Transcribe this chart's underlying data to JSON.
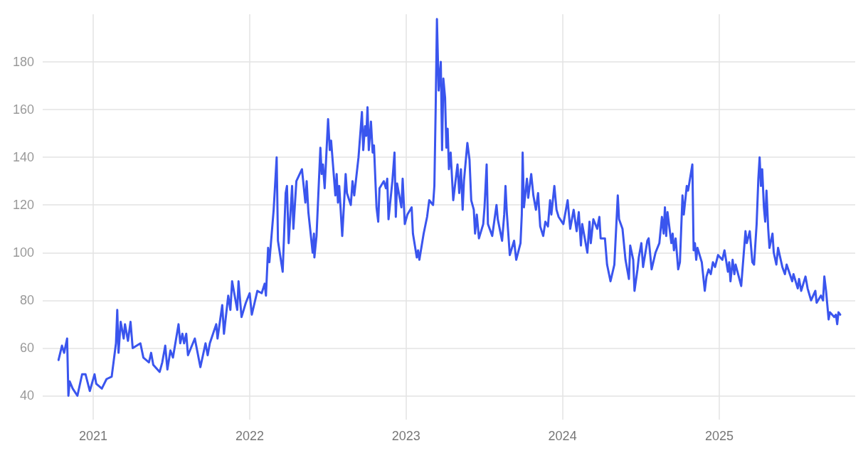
{
  "chart_data": {
    "type": "line",
    "xlim": [
      "2020-09-05",
      "2025-11-14"
    ],
    "xticks": [
      "2021",
      "2022",
      "2023",
      "2024",
      "2025"
    ],
    "ylim": [
      30,
      200
    ],
    "yticks": [
      40,
      60,
      80,
      100,
      120,
      140,
      160,
      180
    ],
    "grid": true,
    "marker": "none",
    "line_style": "solid",
    "series": [
      {
        "color": "#3a55ee",
        "x": [
          "2020-10-12",
          "2020-10-20",
          "2020-10-25",
          "2020-11-01",
          "2020-11-04",
          "2020-11-07",
          "2020-11-14",
          "2020-11-25",
          "2020-12-06",
          "2020-12-14",
          "2020-12-24",
          "2021-01-04",
          "2021-01-08",
          "2021-01-21",
          "2021-02-01",
          "2021-02-13",
          "2021-02-23",
          "2021-02-26",
          "2021-03-01",
          "2021-03-06",
          "2021-03-13",
          "2021-03-16",
          "2021-03-23",
          "2021-03-29",
          "2021-04-03",
          "2021-04-21",
          "2021-04-28",
          "2021-05-11",
          "2021-05-16",
          "2021-05-21",
          "2021-06-05",
          "2021-06-11",
          "2021-06-18",
          "2021-06-23",
          "2021-06-30",
          "2021-07-06",
          "2021-07-19",
          "2021-07-23",
          "2021-07-28",
          "2021-08-01",
          "2021-08-06",
          "2021-08-10",
          "2021-08-26",
          "2021-09-08",
          "2021-09-20",
          "2021-09-25",
          "2021-09-30",
          "2021-10-15",
          "2021-10-18",
          "2021-10-29",
          "2021-11-02",
          "2021-11-12",
          "2021-11-17",
          "2021-11-21",
          "2021-12-03",
          "2021-12-06",
          "2021-12-13",
          "2021-12-23",
          "2022-01-01",
          "2022-01-06",
          "2022-01-19",
          "2022-01-29",
          "2022-02-05",
          "2022-02-08",
          "2022-02-13",
          "2022-02-16",
          "2022-02-26",
          "2022-03-05",
          "2022-03-08",
          "2022-03-19",
          "2022-03-26",
          "2022-03-29",
          "2022-04-02",
          "2022-04-10",
          "2022-04-13",
          "2022-04-20",
          "2022-05-03",
          "2022-05-11",
          "2022-05-14",
          "2022-05-18",
          "2022-05-28",
          "2022-05-31",
          "2022-06-01",
          "2022-06-06",
          "2022-06-15",
          "2022-06-18",
          "2022-06-21",
          "2022-06-25",
          "2022-07-03",
          "2022-07-07",
          "2022-07-10",
          "2022-07-20",
          "2022-07-23",
          "2022-07-26",
          "2022-07-29",
          "2022-08-05",
          "2022-08-13",
          "2022-08-16",
          "2022-08-25",
          "2022-08-29",
          "2022-09-02",
          "2022-09-12",
          "2022-09-20",
          "2022-09-23",
          "2022-09-27",
          "2022-09-30",
          "2022-10-03",
          "2022-10-06",
          "2022-10-11",
          "2022-10-15",
          "2022-10-18",
          "2022-10-24",
          "2022-10-28",
          "2022-10-31",
          "2022-11-10",
          "2022-11-15",
          "2022-11-18",
          "2022-11-21",
          "2022-11-30",
          "2022-12-05",
          "2022-12-08",
          "2022-12-11",
          "2022-12-21",
          "2022-12-24",
          "2022-12-29",
          "2023-01-04",
          "2023-01-14",
          "2023-01-17",
          "2023-01-26",
          "2023-01-29",
          "2023-02-01",
          "2023-02-11",
          "2023-02-19",
          "2023-02-24",
          "2023-03-05",
          "2023-03-08",
          "2023-03-11",
          "2023-03-14",
          "2023-03-18",
          "2023-03-23",
          "2023-03-26",
          "2023-03-29",
          "2023-04-02",
          "2023-04-05",
          "2023-04-08",
          "2023-04-11",
          "2023-04-15",
          "2023-04-21",
          "2023-05-01",
          "2023-05-05",
          "2023-05-09",
          "2023-05-13",
          "2023-05-16",
          "2023-05-24",
          "2023-05-29",
          "2023-06-02",
          "2023-06-08",
          "2023-06-11",
          "2023-06-15",
          "2023-06-20",
          "2023-06-30",
          "2023-07-03",
          "2023-07-08",
          "2023-07-11",
          "2023-07-21",
          "2023-07-31",
          "2023-08-03",
          "2023-08-13",
          "2023-08-18",
          "2023-08-21",
          "2023-08-24",
          "2023-08-31",
          "2023-09-10",
          "2023-09-15",
          "2023-09-25",
          "2023-09-28",
          "2023-09-30",
          "2023-10-03",
          "2023-10-10",
          "2023-10-13",
          "2023-10-20",
          "2023-10-25",
          "2023-10-31",
          "2023-11-05",
          "2023-11-10",
          "2023-11-17",
          "2023-11-22",
          "2023-11-28",
          "2023-12-03",
          "2023-12-06",
          "2023-12-13",
          "2023-12-18",
          "2023-12-23",
          "2024-01-03",
          "2024-01-13",
          "2024-01-19",
          "2024-01-27",
          "2024-02-03",
          "2024-02-08",
          "2024-02-13",
          "2024-02-16",
          "2024-02-28",
          "2024-03-04",
          "2024-03-07",
          "2024-03-13",
          "2024-03-22",
          "2024-03-27",
          "2024-03-30",
          "2024-04-09",
          "2024-04-14",
          "2024-04-22",
          "2024-05-01",
          "2024-05-09",
          "2024-05-12",
          "2024-05-20",
          "2024-05-27",
          "2024-06-04",
          "2024-06-07",
          "2024-06-14",
          "2024-06-17",
          "2024-06-24",
          "2024-06-27",
          "2024-07-03",
          "2024-07-07",
          "2024-07-17",
          "2024-07-20",
          "2024-07-27",
          "2024-08-05",
          "2024-08-14",
          "2024-08-20",
          "2024-08-24",
          "2024-08-27",
          "2024-08-30",
          "2024-09-02",
          "2024-09-11",
          "2024-09-14",
          "2024-09-17",
          "2024-09-21",
          "2024-09-27",
          "2024-10-01",
          "2024-10-07",
          "2024-10-10",
          "2024-10-17",
          "2024-10-20",
          "2024-10-30",
          "2024-11-02",
          "2024-11-05",
          "2024-11-08",
          "2024-11-11",
          "2024-11-21",
          "2024-11-28",
          "2024-12-02",
          "2024-12-07",
          "2024-12-12",
          "2024-12-17",
          "2024-12-22",
          "2024-12-29",
          "2025-01-08",
          "2025-01-13",
          "2025-01-21",
          "2025-01-24",
          "2025-01-27",
          "2025-02-01",
          "2025-02-05",
          "2025-02-08",
          "2025-02-21",
          "2025-03-03",
          "2025-03-06",
          "2025-03-13",
          "2025-03-19",
          "2025-03-23",
          "2025-03-29",
          "2025-04-02",
          "2025-04-05",
          "2025-04-08",
          "2025-04-11",
          "2025-04-15",
          "2025-04-18",
          "2025-04-21",
          "2025-04-25",
          "2025-04-28",
          "2025-05-05",
          "2025-05-08",
          "2025-05-14",
          "2025-05-18",
          "2025-05-28",
          "2025-06-03",
          "2025-06-07",
          "2025-06-20",
          "2025-06-23",
          "2025-07-03",
          "2025-07-06",
          "2025-07-11",
          "2025-07-21",
          "2025-07-26",
          "2025-08-03",
          "2025-08-13",
          "2025-08-16",
          "2025-08-26",
          "2025-08-31",
          "2025-09-03",
          "2025-09-07",
          "2025-09-13",
          "2025-09-16",
          "2025-09-26",
          "2025-09-30",
          "2025-10-03",
          "2025-10-06",
          "2025-10-10"
        ],
        "values": [
          55,
          61,
          58,
          64,
          40,
          46,
          43,
          40,
          49,
          49,
          42,
          49,
          45,
          43,
          47,
          48,
          62,
          76,
          58,
          71,
          64,
          70,
          63,
          71,
          60,
          62,
          56,
          54,
          58,
          53,
          50,
          54,
          61,
          51,
          59,
          56,
          70,
          62,
          66,
          62,
          66,
          57,
          64,
          52,
          62,
          57,
          62,
          70,
          64,
          78,
          66,
          82,
          76,
          88,
          76,
          88,
          73,
          79,
          83,
          74,
          84,
          83,
          87,
          82,
          102,
          96,
          118,
          140,
          105,
          92,
          125,
          128,
          104,
          128,
          110,
          130,
          135,
          121,
          130,
          117,
          100,
          108,
          98,
          107,
          144,
          133,
          137,
          127,
          156,
          143,
          147,
          124,
          133,
          121,
          128,
          107,
          133,
          125,
          120,
          130,
          124,
          140,
          159,
          143,
          153,
          149,
          161,
          143,
          155,
          142,
          145,
          119,
          113,
          127,
          130,
          127,
          131,
          114,
          130,
          142,
          115,
          129,
          119,
          131,
          112,
          116,
          119,
          108,
          98,
          101,
          97,
          108,
          115,
          122,
          120,
          128,
          160,
          198,
          168,
          180,
          143,
          173,
          165,
          144,
          152,
          135,
          142,
          122,
          137,
          125,
          135,
          118,
          130,
          146,
          139,
          122,
          118,
          108,
          116,
          106,
          112,
          119,
          137,
          112,
          107,
          120,
          114,
          105,
          116,
          128,
          117,
          99,
          105,
          97,
          104,
          116,
          142,
          119,
          131,
          123,
          133,
          124,
          118,
          125,
          111,
          107,
          113,
          111,
          122,
          116,
          128,
          118,
          115,
          112,
          122,
          110,
          118,
          109,
          117,
          103,
          112,
          100,
          113,
          104,
          114,
          110,
          115,
          106,
          106,
          95,
          88,
          95,
          124,
          114,
          110,
          97,
          89,
          103,
          97,
          84,
          93,
          98,
          104,
          94,
          105,
          106,
          93,
          100,
          104,
          115,
          108,
          119,
          107,
          117,
          104,
          108,
          101,
          106,
          93,
          96,
          124,
          116,
          128,
          126,
          137,
          101,
          104,
          97,
          102,
          96,
          84,
          90,
          93,
          91,
          96,
          94,
          99,
          97,
          101,
          92,
          96,
          88,
          97,
          91,
          95,
          86,
          109,
          104,
          109,
          96,
          95,
          112,
          131,
          140,
          128,
          135,
          119,
          113,
          126,
          110,
          102,
          108,
          100,
          95,
          102,
          94,
          91,
          95,
          88,
          91,
          85,
          89,
          84,
          90,
          85,
          80,
          84,
          79,
          82,
          80,
          90,
          84,
          72,
          75,
          73,
          74,
          70,
          75,
          74
        ]
      }
    ]
  }
}
